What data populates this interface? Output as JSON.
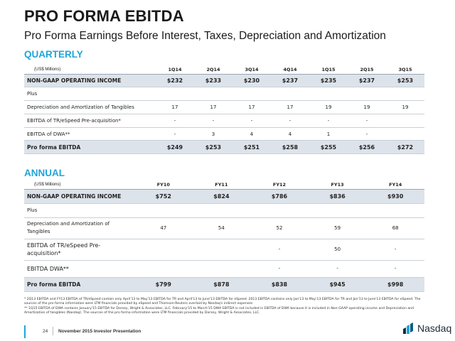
{
  "header": {
    "title": "PRO FORMA EBITDA",
    "subtitle": "Pro Forma Earnings Before Interest, Taxes, Depreciation and Amortization"
  },
  "quarterly": {
    "heading": "QUARTERLY",
    "units": "(US$ Millions)",
    "columns": [
      "1Q14",
      "2Q14",
      "3Q14",
      "4Q14",
      "1Q15",
      "2Q15",
      "3Q15"
    ],
    "rows": [
      {
        "label": "NON-GAAP OPERATING INCOME",
        "values": [
          "$232",
          "$233",
          "$230",
          "$237",
          "$235",
          "$237",
          "$253"
        ]
      },
      {
        "label": "Plus",
        "values": [
          "",
          "",
          "",
          "",
          "",
          "",
          ""
        ]
      },
      {
        "label": "Depreciation and Amortization of Tangibles",
        "values": [
          "17",
          "17",
          "17",
          "17",
          "19",
          "19",
          "19"
        ]
      },
      {
        "label": "EBITDA of TR/eSpeed Pre-acquisition*",
        "values": [
          "-",
          "-",
          "-",
          "-",
          "-",
          "-",
          ""
        ]
      },
      {
        "label": "EBITDA of DWA**",
        "values": [
          "-",
          "3",
          "4",
          "4",
          "1",
          "-",
          ""
        ]
      },
      {
        "label": "Pro forma EBITDA",
        "values": [
          "$249",
          "$253",
          "$251",
          "$258",
          "$255",
          "$256",
          "$272"
        ]
      }
    ]
  },
  "annual": {
    "heading": "ANNUAL",
    "units": "(US$ Millions)",
    "columns": [
      "FY10",
      "FY11",
      "FY12",
      "FY13",
      "FY14"
    ],
    "rows": [
      {
        "label": "NON-GAAP OPERATING INCOME",
        "values": [
          "$752",
          "$824",
          "$786",
          "$836",
          "$930"
        ]
      },
      {
        "label": "Plus",
        "values": [
          "",
          "",
          "",
          "",
          ""
        ]
      },
      {
        "label": "Depreciation and Amortization of Tangibles",
        "values": [
          "47",
          "54",
          "52",
          "59",
          "68"
        ]
      },
      {
        "label": "EBITDA of TR/eSpeed Pre-acquisition*",
        "values": [
          "",
          "",
          "-",
          "50",
          "-"
        ]
      },
      {
        "label": "EBITDA DWA**",
        "values": [
          "",
          "",
          "-",
          "-",
          "-"
        ]
      },
      {
        "label": "Pro forma EBITDA",
        "values": [
          "$799",
          "$878",
          "$838",
          "$945",
          "$998"
        ]
      }
    ]
  },
  "footnotes": {
    "note1": "*  2Q13 EBITDA and FY13 EBITDA of TR/eSpeed contain only April'13 to May'13 EBITDA for TR and April'13 to June'13 EBITDA for eSpeed. 2013 EBITDA  contains only Jan'13 to May'13 EBITDA for TR and Jan'13 to June'13 EBITDA for eSpeed. The sources of the pro forma information were LTM financials provided by eSpeed and Thomson-Reuters overlaid by Nasdaq's indirect expenses",
    "note2": "** 1Q15 EBITDA of DWA contains January'15 EBITDA for Dorsey, Wright & Associates, LLC. February'15 to March'15 DWA EBITDA is not included in EBITDA of DWA because it is included in Non-GAAP operating income and Depreciation and Amortization of tangibles (Nasdaq). The sources of the pro forma information were LTM financials provided by Dorsey, Wright & Associates, LLC."
  },
  "footer": {
    "page_number": "24",
    "presentation": "November 2015 Investor Presentation",
    "logo_text": "Nasdaq",
    "logo_icon": "nasdaq-logo-icon"
  },
  "colors": {
    "accent": "#1ea6d8",
    "shaded_row": "#dde3ea",
    "footer_bar": "#1ea6d8"
  }
}
